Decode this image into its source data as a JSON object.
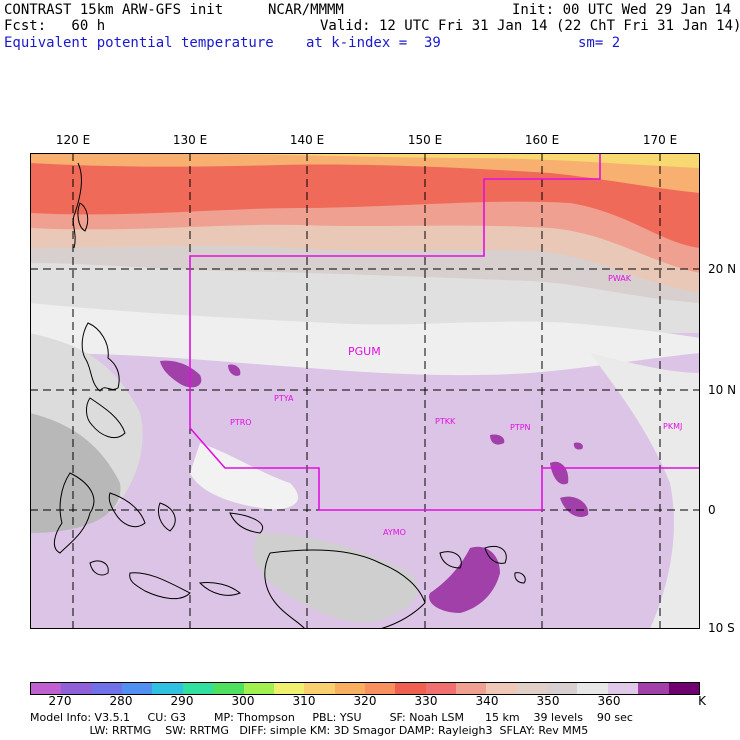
{
  "header": {
    "model": "CONTRAST 15km ARW-GFS init",
    "org": "NCAR/MMMM",
    "init": "Init: 00 UTC Wed 29 Jan 14",
    "fcst": "Fcst:   60 h",
    "valid": "Valid: 12 UTC Fri 31 Jan 14 (22 ChT Fri 31 Jan 14)",
    "field": "Equivalent potential temperature",
    "level": "at k-index =  39",
    "smooth": "sm= 2"
  },
  "map": {
    "lon_ticks": [
      "120 E",
      "130 E",
      "140 E",
      "150 E",
      "160 E",
      "170 E"
    ],
    "lat_ticks": [
      "20 N",
      "10 N",
      "0",
      "10 S"
    ],
    "stations": [
      {
        "id": "PWAK",
        "label": "PWAK"
      },
      {
        "id": "PGUM",
        "label": "PGUM"
      },
      {
        "id": "PTYA",
        "label": "PTYA"
      },
      {
        "id": "PTRO",
        "label": "PTRO"
      },
      {
        "id": "PTKK",
        "label": "PTKK"
      },
      {
        "id": "PTPN",
        "label": "PTPN"
      },
      {
        "id": "PKMJ",
        "label": "PKMJ"
      },
      {
        "id": "AYMO",
        "label": "AYMO"
      }
    ]
  },
  "colorbar": {
    "colors": [
      "#c060d0",
      "#9060d8",
      "#7070e8",
      "#5090f0",
      "#30c0e0",
      "#30e0a0",
      "#50e060",
      "#a0f050",
      "#f0f070",
      "#f8d070",
      "#f8b060",
      "#f89060",
      "#f06050",
      "#f07070",
      "#f0a090",
      "#f0c8b8",
      "#e0d0c8",
      "#d8d0d0",
      "#e8e8e8",
      "#e0c8e8",
      "#a040a8",
      "#700070"
    ],
    "labels": [
      "270",
      "280",
      "290",
      "300",
      "310",
      "320",
      "330",
      "340",
      "350",
      "360"
    ],
    "units": "K"
  },
  "footer": {
    "line1": "Model Info: V3.5.1     CU: G3        MP: Thompson     PBL: YSU        SF: Noah LSM      15 km    39 levels    90 sec",
    "line2": "                 LW: RRTMG    SW: RRTMG   DIFF: simple KM: 3D Smagor DAMP: Rayleigh3  SFLAY: Rev MM5"
  }
}
